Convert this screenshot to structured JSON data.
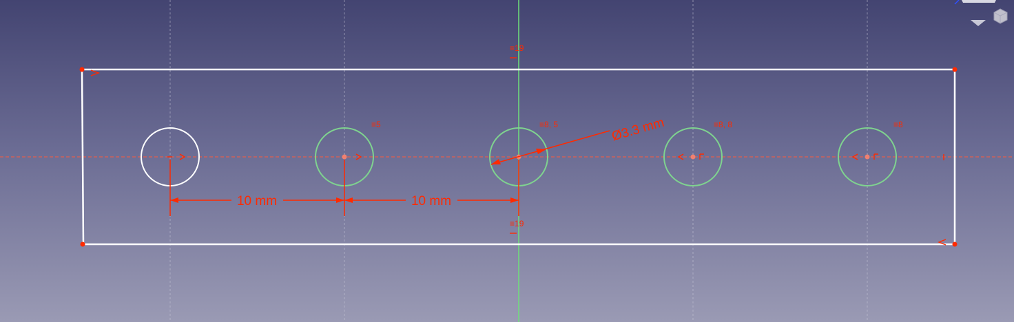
{
  "viewport": {
    "background_top": "#434471",
    "background_bottom": "#9a9ab4",
    "edge_color": "#ffffff",
    "construction_color": "#7fd38f",
    "constraint_color": "#ff2a00",
    "vertical_axis_color": "#6fe07a",
    "horizontal_axis_color": "#ff5b3a"
  },
  "sketch": {
    "plate": {
      "name": "rectangle"
    },
    "holes": [
      {
        "id": "hole-1",
        "construction": false
      },
      {
        "id": "hole-2",
        "construction": true
      },
      {
        "id": "hole-3",
        "construction": true
      },
      {
        "id": "hole-4",
        "construction": true
      },
      {
        "id": "hole-5",
        "construction": true
      }
    ]
  },
  "dimensions": {
    "horizontal_1": "10 mm",
    "horizontal_2": "10 mm",
    "diameter": "Ø3.3 mm"
  },
  "constraint_labels": {
    "top_center": "19",
    "bottom_center": "19",
    "hole_2": "5",
    "hole_3": "8, 5",
    "hole_4": "8, 8",
    "hole_5": "8"
  },
  "navigation": {
    "icons": [
      "navigation-cube-icon",
      "view-menu-arrow-icon"
    ]
  }
}
